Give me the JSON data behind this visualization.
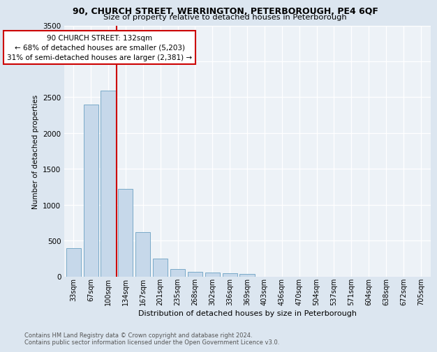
{
  "title1": "90, CHURCH STREET, WERRINGTON, PETERBOROUGH, PE4 6QF",
  "title2": "Size of property relative to detached houses in Peterborough",
  "xlabel": "Distribution of detached houses by size in Peterborough",
  "ylabel": "Number of detached properties",
  "categories": [
    "33sqm",
    "67sqm",
    "100sqm",
    "134sqm",
    "167sqm",
    "201sqm",
    "235sqm",
    "268sqm",
    "302sqm",
    "336sqm",
    "369sqm",
    "403sqm",
    "436sqm",
    "470sqm",
    "504sqm",
    "537sqm",
    "571sqm",
    "604sqm",
    "638sqm",
    "672sqm",
    "705sqm"
  ],
  "values": [
    390,
    2400,
    2590,
    1220,
    620,
    250,
    100,
    60,
    55,
    45,
    30,
    0,
    0,
    0,
    0,
    0,
    0,
    0,
    0,
    0,
    0
  ],
  "bar_color": "#c6d8ea",
  "bar_edge_color": "#7aaac8",
  "vline_x": 2.5,
  "vline_color": "#cc0000",
  "annotation_text": "90 CHURCH STREET: 132sqm\n← 68% of detached houses are smaller (5,203)\n31% of semi-detached houses are larger (2,381) →",
  "annotation_box_facecolor": "white",
  "annotation_box_edgecolor": "#cc0000",
  "ylim": [
    0,
    3500
  ],
  "yticks": [
    0,
    500,
    1000,
    1500,
    2000,
    2500,
    3000,
    3500
  ],
  "footer": "Contains HM Land Registry data © Crown copyright and database right 2024.\nContains public sector information licensed under the Open Government Licence v3.0.",
  "fig_bg_color": "#dce6f0",
  "plot_bg_color": "#edf2f7"
}
